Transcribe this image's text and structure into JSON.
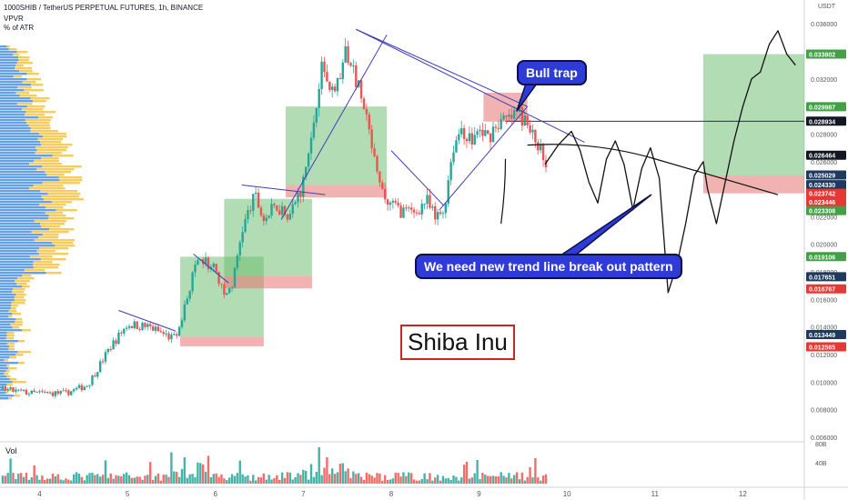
{
  "header": {
    "line1": "1000SHIB / TetherUS PERPETUAL FUTURES, 1h, BINANCE",
    "line2": "VPVR",
    "line3": "% of ATR"
  },
  "annotations": {
    "bull_trap": "Bull trap",
    "pattern_note": "We need new trend line break out pattern",
    "asset_title": "Shiba Inu"
  },
  "volume_label": "Vol",
  "price_unit": "USDT",
  "colors": {
    "up": "#26a69a",
    "down": "#ef5350",
    "profit_zone": "#66bb6a",
    "loss_zone": "#e57373",
    "trendline": "#3f3fb8",
    "callout": "#2f3bd6",
    "vpvr_yellow": "#f6c343",
    "vpvr_blue": "#4a90e2"
  },
  "chart_data": {
    "type": "candlestick",
    "y_ticks": [
      "0.036000",
      "0.034000",
      "0.032000",
      "0.030000",
      "0.028000",
      "0.026000",
      "0.024000",
      "0.022000",
      "0.020000",
      "0.018000",
      "0.016000",
      "0.014000",
      "0.012000",
      "0.010000",
      "0.008000",
      "0.006000"
    ],
    "x_ticks": [
      "4",
      "5",
      "6",
      "7",
      "8",
      "9",
      "10",
      "11",
      "12"
    ],
    "ylim": [
      0.0058,
      0.0372
    ],
    "xlim": [
      3.55,
      12.7
    ],
    "price_labels": [
      {
        "value": "0.033802",
        "color": "#43a047"
      },
      {
        "value": "0.029987",
        "color": "#43a047"
      },
      {
        "value": "0.028934",
        "color": "#131722"
      },
      {
        "value": "0.026464",
        "color": "#131722"
      },
      {
        "value": "0.025029",
        "color": "#1e3a5f"
      },
      {
        "value": "0.024330",
        "color": "#1e3a5f"
      },
      {
        "value": "0.023742",
        "color": "#e53935"
      },
      {
        "value": "0.023446",
        "color": "#e53935"
      },
      {
        "value": "0.023308",
        "color": "#43a047"
      },
      {
        "value": "0.019106",
        "color": "#43a047"
      },
      {
        "value": "0.017651",
        "color": "#1e3a5f"
      },
      {
        "value": "0.016767",
        "color": "#e53935"
      },
      {
        "value": "0.013449",
        "color": "#1e3a5f"
      },
      {
        "value": "0.012565",
        "color": "#e53935"
      }
    ],
    "volume_ticks": [
      "80B",
      "40B"
    ],
    "horizontal_line": 0.028934,
    "ohlc_anchors": [
      [
        3.55,
        0.0095
      ],
      [
        3.9,
        0.0092
      ],
      [
        4.3,
        0.0092
      ],
      [
        4.55,
        0.0098
      ],
      [
        4.8,
        0.0125
      ],
      [
        5.0,
        0.0142
      ],
      [
        5.25,
        0.014
      ],
      [
        5.5,
        0.0132
      ],
      [
        5.6,
        0.014
      ],
      [
        5.75,
        0.018
      ],
      [
        5.85,
        0.0188
      ],
      [
        6.0,
        0.0182
      ],
      [
        6.1,
        0.0162
      ],
      [
        6.2,
        0.0172
      ],
      [
        6.3,
        0.021
      ],
      [
        6.45,
        0.0235
      ],
      [
        6.55,
        0.0218
      ],
      [
        6.7,
        0.0228
      ],
      [
        6.85,
        0.0222
      ],
      [
        7.0,
        0.0245
      ],
      [
        7.1,
        0.028
      ],
      [
        7.2,
        0.033
      ],
      [
        7.35,
        0.031
      ],
      [
        7.5,
        0.034
      ],
      [
        7.6,
        0.032
      ],
      [
        7.75,
        0.028
      ],
      [
        7.85,
        0.0245
      ],
      [
        7.95,
        0.023
      ],
      [
        8.1,
        0.0225
      ],
      [
        8.25,
        0.0222
      ],
      [
        8.4,
        0.0232
      ],
      [
        8.5,
        0.0218
      ],
      [
        8.6,
        0.0225
      ],
      [
        8.7,
        0.027
      ],
      [
        8.8,
        0.0285
      ],
      [
        8.9,
        0.0275
      ],
      [
        9.0,
        0.0282
      ],
      [
        9.1,
        0.0278
      ],
      [
        9.2,
        0.0288
      ],
      [
        9.35,
        0.029
      ],
      [
        9.45,
        0.0296
      ],
      [
        9.55,
        0.0285
      ],
      [
        9.65,
        0.0275
      ],
      [
        9.75,
        0.0262
      ]
    ],
    "zones": [
      {
        "x0": 5.6,
        "x1": 6.55,
        "profit": [
          0.0133,
          0.0191
        ],
        "loss": [
          0.0126,
          0.0133
        ]
      },
      {
        "x0": 6.1,
        "x1": 7.1,
        "profit": [
          0.0177,
          0.0233
        ],
        "loss": [
          0.0168,
          0.0177
        ]
      },
      {
        "x0": 6.8,
        "x1": 7.95,
        "profit": [
          0.0243,
          0.03
        ],
        "loss": [
          0.0234,
          0.0243
        ]
      },
      {
        "x0": 9.05,
        "x1": 9.55,
        "profit": null,
        "loss": [
          0.0289,
          0.031
        ]
      },
      {
        "x0": 11.55,
        "x1": 12.7,
        "profit": [
          0.025,
          0.0338
        ],
        "loss": [
          0.0237,
          0.025
        ]
      }
    ],
    "trendlines": [
      [
        [
          4.9,
          0.0152
        ],
        [
          5.55,
          0.0137
        ]
      ],
      [
        [
          5.75,
          0.0193
        ],
        [
          6.15,
          0.0172
        ]
      ],
      [
        [
          6.3,
          0.0243
        ],
        [
          7.25,
          0.0236
        ]
      ],
      [
        [
          6.75,
          0.0218
        ],
        [
          7.95,
          0.0352
        ]
      ],
      [
        [
          7.6,
          0.0356
        ],
        [
          9.55,
          0.03
        ]
      ],
      [
        [
          7.6,
          0.0356
        ],
        [
          10.2,
          0.0274
        ]
      ],
      [
        [
          8.0,
          0.0268
        ],
        [
          8.6,
          0.0228
        ]
      ],
      [
        [
          8.55,
          0.0225
        ],
        [
          9.55,
          0.03
        ]
      ]
    ],
    "sketch_path": [
      [
        9.75,
        0.0258
      ],
      [
        9.9,
        0.0272
      ],
      [
        10.05,
        0.0282
      ],
      [
        10.15,
        0.0268
      ],
      [
        10.25,
        0.0245
      ],
      [
        10.35,
        0.023
      ],
      [
        10.45,
        0.0262
      ],
      [
        10.55,
        0.0275
      ],
      [
        10.65,
        0.0258
      ],
      [
        10.75,
        0.0225
      ],
      [
        10.85,
        0.0255
      ],
      [
        10.95,
        0.027
      ],
      [
        11.05,
        0.0248
      ],
      [
        11.15,
        0.0165
      ],
      [
        11.25,
        0.0185
      ],
      [
        11.35,
        0.0215
      ],
      [
        11.45,
        0.025
      ],
      [
        11.55,
        0.026
      ],
      [
        11.6,
        0.024
      ],
      [
        11.7,
        0.0215
      ],
      [
        11.8,
        0.0245
      ],
      [
        11.9,
        0.0275
      ],
      [
        12.0,
        0.03
      ],
      [
        12.1,
        0.032
      ],
      [
        12.2,
        0.0325
      ],
      [
        12.3,
        0.0345
      ],
      [
        12.4,
        0.0355
      ],
      [
        12.5,
        0.0338
      ],
      [
        12.6,
        0.033
      ]
    ],
    "curve_line": [
      [
        9.55,
        0.0272
      ],
      [
        10.3,
        0.0275
      ],
      [
        11.0,
        0.0262
      ],
      [
        12.4,
        0.0236
      ]
    ]
  }
}
